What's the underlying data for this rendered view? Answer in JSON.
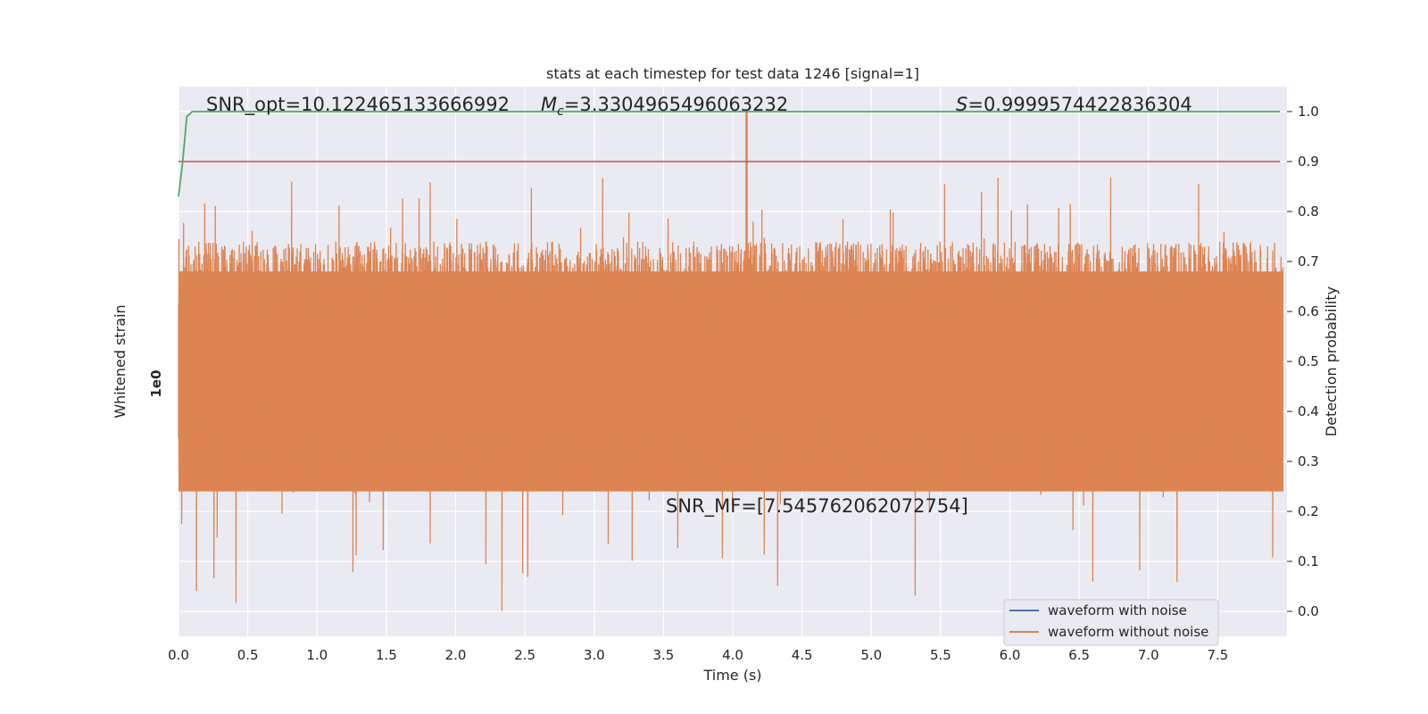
{
  "chart_data": {
    "type": "line",
    "title": "stats at each timestep for test data 1246 [signal=1]",
    "xlabel": "Time (s)",
    "ylabel_left": "Whitened strain",
    "ylabel_right": "Detection probability",
    "xlim": [
      0.0,
      8.0
    ],
    "ylim_right": [
      -0.05,
      1.05
    ],
    "x_ticks": [
      "0.0",
      "0.5",
      "1.0",
      "1.5",
      "2.0",
      "2.5",
      "3.0",
      "3.5",
      "4.0",
      "4.5",
      "5.0",
      "5.5",
      "6.0",
      "6.5",
      "7.0",
      "7.5"
    ],
    "y_ticks_right": [
      "0.0",
      "0.1",
      "0.2",
      "0.3",
      "0.4",
      "0.5",
      "0.6",
      "0.7",
      "0.8",
      "0.9",
      "1.0"
    ],
    "grid": true,
    "legend_position": "lower right",
    "annotations": {
      "snr_opt": "SNR_opt=10.122465133666992",
      "mc_symbol": "M",
      "mc_subscript": "c",
      "mc_value": "=3.3304965496063232",
      "s_symbol": "S",
      "s_value": "=0.9999574422836304",
      "snr_mf": "SNR_MF=[7.545762062072754]"
    },
    "series": [
      {
        "name": "waveform with noise",
        "color": "#4c72b0"
      },
      {
        "name": "waveform without noise",
        "color": "#dd8452"
      }
    ],
    "noise_band": {
      "center": 0.455,
      "typical_max": 0.74,
      "typical_min": 0.27,
      "peak_max": 0.87,
      "peak_min": 0.0
    },
    "signal_spike": {
      "x": 4.1,
      "y_top": 1.0
    },
    "detection_probability": {
      "color": "#55a868",
      "x": [
        0.0,
        0.03,
        0.06,
        0.1,
        0.2,
        7.95
      ],
      "y": [
        0.83,
        0.9,
        0.99,
        1.0,
        1.0,
        1.0
      ]
    },
    "threshold": {
      "y": 0.9,
      "color": "#c44e52"
    },
    "left_tick_glyph": "1e0"
  },
  "colors": {
    "axes_bg": "#eaeaf2",
    "grid": "#ffffff",
    "text": "#262626"
  }
}
